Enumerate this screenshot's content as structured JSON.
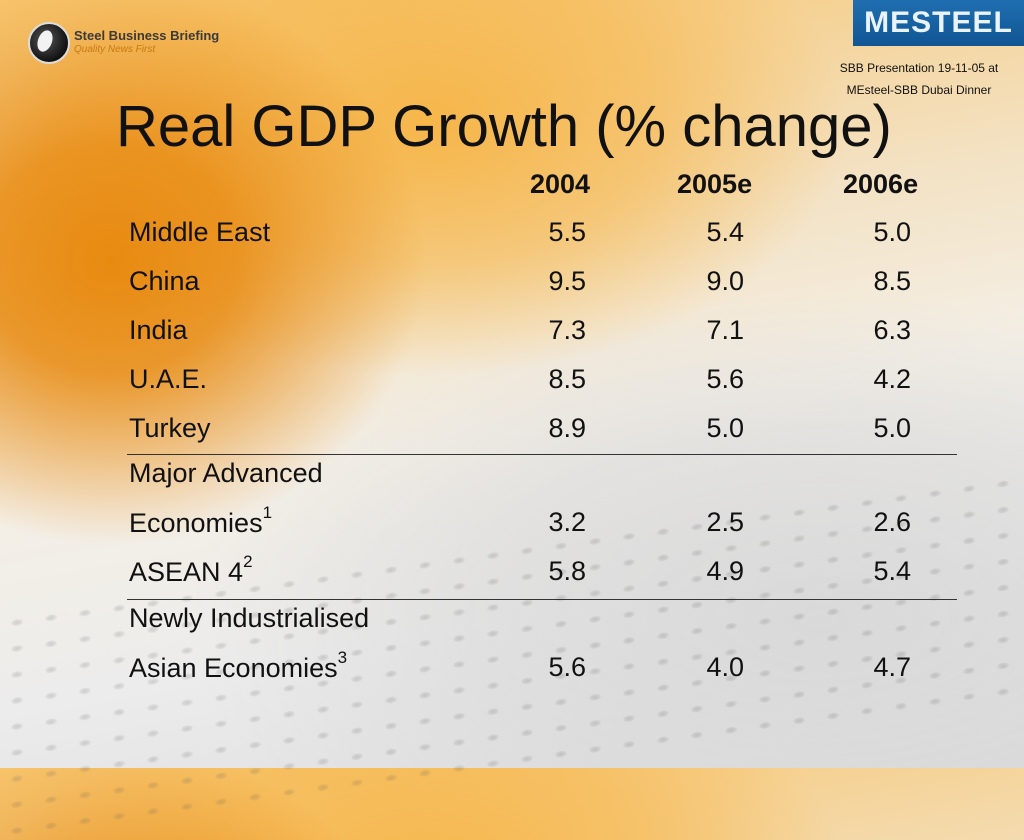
{
  "header": {
    "sbb_logo_name": "Steel Business Briefing",
    "sbb_logo_tagline": "Quality News First",
    "mesteel_logo": "MESTEEL",
    "presentation_note_line1": "SBB Presentation 19-11-05 at",
    "presentation_note_line2": "MEsteel-SBB Dubai Dinner"
  },
  "title": "Real GDP Growth (% change)",
  "table": {
    "columns": [
      "2004",
      "2005e",
      "2006e"
    ],
    "rows": [
      {
        "label": "Middle East",
        "values": [
          "5.5",
          "5.4",
          "5.0"
        ]
      },
      {
        "label": "China",
        "values": [
          "9.5",
          "9.0",
          "8.5"
        ]
      },
      {
        "label": "India",
        "values": [
          "7.3",
          "7.1",
          "6.3"
        ]
      },
      {
        "label": "U.A.E.",
        "values": [
          "8.5",
          "5.6",
          "4.2"
        ]
      },
      {
        "label": "Turkey",
        "values": [
          "8.9",
          "5.0",
          "5.0"
        ]
      },
      {
        "label_line1": "Major Advanced",
        "label_line2": "Economies",
        "footnote": "1",
        "values": [
          "3.2",
          "2.5",
          "2.6"
        ]
      },
      {
        "label": "ASEAN 4",
        "footnote": "2",
        "values": [
          "5.8",
          "4.9",
          "5.4"
        ]
      },
      {
        "label_line1": "Newly Industrialised",
        "label_line2": "Asian Economies",
        "footnote": "3",
        "values": [
          "5.6",
          "4.0",
          "4.7"
        ]
      }
    ]
  }
}
